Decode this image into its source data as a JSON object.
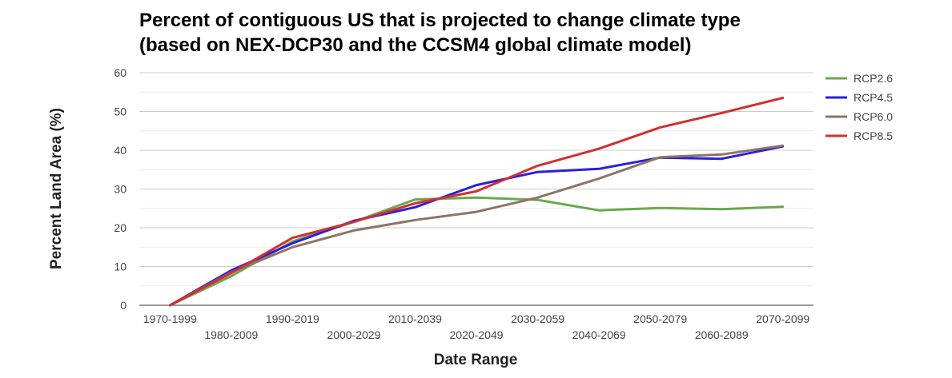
{
  "chart_data": {
    "type": "line",
    "title_line1": "Percent of contiguous US that is projected to change climate type",
    "title_line2": "(based on NEX-DCP30 and the CCSM4 global climate model)",
    "xlabel": "Date Range",
    "ylabel": "Percent Land Area (%)",
    "categories": [
      "1970-1999",
      "1980-2009",
      "1990-2019",
      "2000-2029",
      "2010-2039",
      "2020-2049",
      "2030-2059",
      "2040-2069",
      "2050-2079",
      "2060-2089",
      "2070-2099"
    ],
    "ylim": [
      0,
      60
    ],
    "yticks": [
      "0",
      "10",
      "20",
      "30",
      "40",
      "50",
      "60"
    ],
    "grid": true,
    "legend_position": "right",
    "series": [
      {
        "name": "RCP2.6",
        "color": "#6aa84f",
        "values": [
          0,
          7.5,
          16.5,
          21.5,
          27.3,
          27.8,
          27.2,
          24.5,
          25.1,
          24.8,
          25.4
        ]
      },
      {
        "name": "RCP4.5",
        "color": "#2a1fe0",
        "values": [
          0,
          9.0,
          16.0,
          21.8,
          25.3,
          31.0,
          34.4,
          35.2,
          38.1,
          37.8,
          41.0
        ]
      },
      {
        "name": "RCP6.0",
        "color": "#8d7465",
        "values": [
          0,
          8.5,
          15.0,
          19.3,
          22.0,
          24.1,
          27.8,
          32.7,
          38.2,
          38.9,
          41.2
        ]
      },
      {
        "name": "RCP8.5",
        "color": "#d32f2f",
        "values": [
          0,
          8.3,
          17.4,
          21.5,
          26.3,
          29.4,
          36.0,
          40.4,
          45.9,
          49.6,
          53.5
        ]
      }
    ]
  }
}
